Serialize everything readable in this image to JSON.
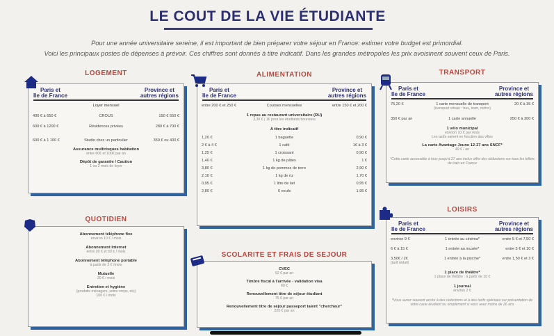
{
  "title": "LE COUT DE LA VIE ÉTUDIANTE",
  "intro": [
    "Pour une année universitaire sereine, il est important de bien préparer votre séjour en France: estimer votre budget est primordial.",
    "Voici les principaux postes de dépenses à prévoir. Ces chiffres sont donnés à titre indicatif. Dans les grandes métropoles les prix avoisinent souvent ceux de Paris."
  ],
  "colors": {
    "title": "#2d3070",
    "section": "#b8473f",
    "shadow": "#2f62a0"
  },
  "header": {
    "left": "Paris et\nIle de France",
    "right": "Province et\nautres régions"
  },
  "sections": {
    "logement": {
      "title": "LOGEMENT",
      "icon": "house-icon",
      "header": true,
      "rows": [
        {
          "t": "c",
          "label": "Loyer mensuel",
          "bold": false
        },
        {
          "t": "3",
          "l": "400 € à 650 €",
          "c": "CROUS",
          "r": "150 € 550 €"
        },
        {
          "t": "3",
          "l": "600 € à 1200 €",
          "c": "Résidences privées",
          "r": "280 € à 700 €"
        },
        {
          "t": "3",
          "l": "600 € à 1 100 €",
          "c": "Studio chez un particulier",
          "r": "350 € ou 400 €"
        },
        {
          "t": "c",
          "label": "Assurance multirisques habitation",
          "sub": [
            "entre 60€ et 100€ par an"
          ]
        },
        {
          "t": "c",
          "label": "Dépôt de garantie / Caution",
          "sub": [
            "1 ou 2 mois de loyer"
          ]
        }
      ]
    },
    "alimentation": {
      "title": "ALIMENTATION",
      "icon": "shopping-cart-icon",
      "header": true,
      "rows": [
        {
          "t": "3",
          "l": "entre 200 € et 250 €",
          "c": "Courses mensuelles",
          "r": "entre 150 € et 200 €"
        },
        {
          "t": "c",
          "label": "1 repas au restaurant universitaire (RU)",
          "sub": [
            "3,30 € | 1€ pour les étudiants boursiers"
          ]
        },
        {
          "t": "c",
          "label": "A titre indicatif",
          "bold": true
        },
        {
          "t": "3",
          "l": "1,20 €",
          "c": "1 baguette",
          "r": "0,90 €"
        },
        {
          "t": "3",
          "l": "2 € à 4 €",
          "c": "1 café",
          "r": "1€ à 3 €"
        },
        {
          "t": "3",
          "l": "1,25 €",
          "c": "1 croissant",
          "r": "0,90 €"
        },
        {
          "t": "3",
          "l": "1,40 €",
          "c": "1 kg de pâtes",
          "r": "1 €"
        },
        {
          "t": "3",
          "l": "3,80 €",
          "c": "1 kg de pommes de terre",
          "r": "2,90 €"
        },
        {
          "t": "3",
          "l": "2,10 €",
          "c": "1 kg de riz",
          "r": "1,70 €"
        },
        {
          "t": "3",
          "l": "0,95 €",
          "c": "1 litre de lait",
          "r": "0,95 €"
        },
        {
          "t": "3",
          "l": "2,80 €",
          "c": "6 oeufs",
          "r": "1,95 €"
        }
      ]
    },
    "transport": {
      "title": "TRANSPORT",
      "icon": "train-icon",
      "header": true,
      "rows": [
        {
          "t": "3",
          "l": "75,20 €",
          "c": "1 carte mensuelle de transport",
          "csub": "(transport urbain : bus, tram, métro)",
          "r": "20 € à 35 €"
        },
        {
          "t": "3",
          "l": "350 € par an",
          "c": "1 carte annuelle",
          "r": "250 € à 300 €"
        },
        {
          "t": "c",
          "label": "1 vélo municipal",
          "sub": [
            "environ 10 € par mois",
            "Les tarifs varient en fonction des villes"
          ]
        },
        {
          "t": "c",
          "label": "La carte Avantage Jeune 12-27 ans SNCF*",
          "sub": [
            "49 € / an"
          ]
        },
        {
          "t": "n",
          "label": "*Cette carte accessible à tous jusqu'à 27 ans inclus offre des réductions sur tous les billets de train en France"
        }
      ]
    },
    "quotidien": {
      "title": "QUOTIDIEN",
      "icon": "shield-icon",
      "header": false,
      "rows": [
        {
          "t": "c",
          "label": "Abonnement téléphone fixe",
          "sub": [
            "environ 10 € / mois"
          ]
        },
        {
          "t": "c",
          "label": "Abonnement Internet",
          "sub": [
            "entre 20 € et 50 € / mois"
          ]
        },
        {
          "t": "c",
          "label": "Abonnement téléphone portable",
          "sub": [
            "à partir de 2 € /mois"
          ]
        },
        {
          "t": "c",
          "label": "Mutuelle",
          "sub": [
            "20 € / mois"
          ]
        },
        {
          "t": "c",
          "label": "Entretien et hygiène",
          "sub": [
            "(produits ménagers, soins corps, etc)",
            "100 € / mois"
          ]
        }
      ]
    },
    "scolarite": {
      "title": "SCOLARITE ET FRAIS DE SEJOUR",
      "icon": "card-icon",
      "header": false,
      "rows": [
        {
          "t": "c",
          "label": "CVEC",
          "sub": [
            "92 € par an"
          ]
        },
        {
          "t": "c",
          "label": "Timbre fiscal à l'arrivée - validation visa",
          "sub": [
            "60 €"
          ]
        },
        {
          "t": "c",
          "label": "Renouvellement titre de séjour étudiant",
          "sub": [
            "75 € par an"
          ]
        },
        {
          "t": "c",
          "label": "Renouvellement titre de séjour passeport talent \"chercheur\"",
          "sub": [
            "225 € par an"
          ]
        }
      ]
    },
    "loisirs": {
      "title": "LOISIRS",
      "icon": "puzzle-icon",
      "header": true,
      "rows": [
        {
          "t": "3",
          "l": "environ 9 €",
          "c": "1 entrée au cinéma*",
          "r": "entre 5 € et 7,50 €"
        },
        {
          "t": "3",
          "l": "6 € à 15 €",
          "c": "1 entrée au musée*",
          "r": "entre 5 € et 10 €"
        },
        {
          "t": "3",
          "l": "3,50€ / 2€",
          "lsub": "(tarif réduit)",
          "c": "1 entrée à la piscine*",
          "r": "entre 1,50 € et 3 €"
        },
        {
          "t": "c",
          "label": "1 place de théâtre*",
          "sub": [
            "1 place de théâtre : à partir de 10 €"
          ]
        },
        {
          "t": "c",
          "label": "1 journal",
          "sub": [
            "environ 2 €"
          ]
        },
        {
          "t": "n",
          "label": "*Vous aurez souvent accès à des réductions et à des tarifs spéciaux sur présentation de votre carte étudiant ou simplement si vous avez moins de 26 ans"
        }
      ]
    }
  }
}
